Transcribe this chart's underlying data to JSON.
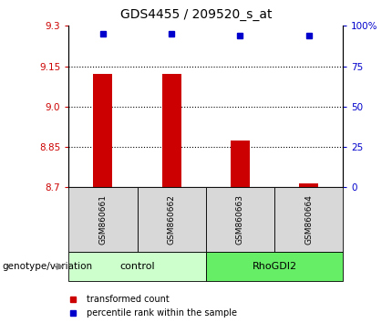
{
  "title": "GDS4455 / 209520_s_at",
  "samples": [
    "GSM860661",
    "GSM860662",
    "GSM860663",
    "GSM860664"
  ],
  "groups": [
    "control",
    "control",
    "RhoGDI2",
    "RhoGDI2"
  ],
  "group_colors": {
    "control": "#ccffcc",
    "RhoGDI2": "#66ee66"
  },
  "transformed_counts": [
    9.12,
    9.12,
    8.875,
    8.715
  ],
  "percentile_ranks": [
    95,
    95,
    94,
    94
  ],
  "ylim": [
    8.7,
    9.3
  ],
  "ylim_right": [
    0,
    100
  ],
  "yticks_left": [
    8.7,
    8.85,
    9.0,
    9.15,
    9.3
  ],
  "yticks_right": [
    0,
    25,
    50,
    75,
    100
  ],
  "hlines": [
    8.85,
    9.0,
    9.15
  ],
  "bar_color": "#cc0000",
  "dot_color": "#0000cc",
  "bar_bottom": 8.7,
  "legend_red_label": "transformed count",
  "legend_blue_label": "percentile rank within the sample",
  "genotype_label": "genotype/variation"
}
